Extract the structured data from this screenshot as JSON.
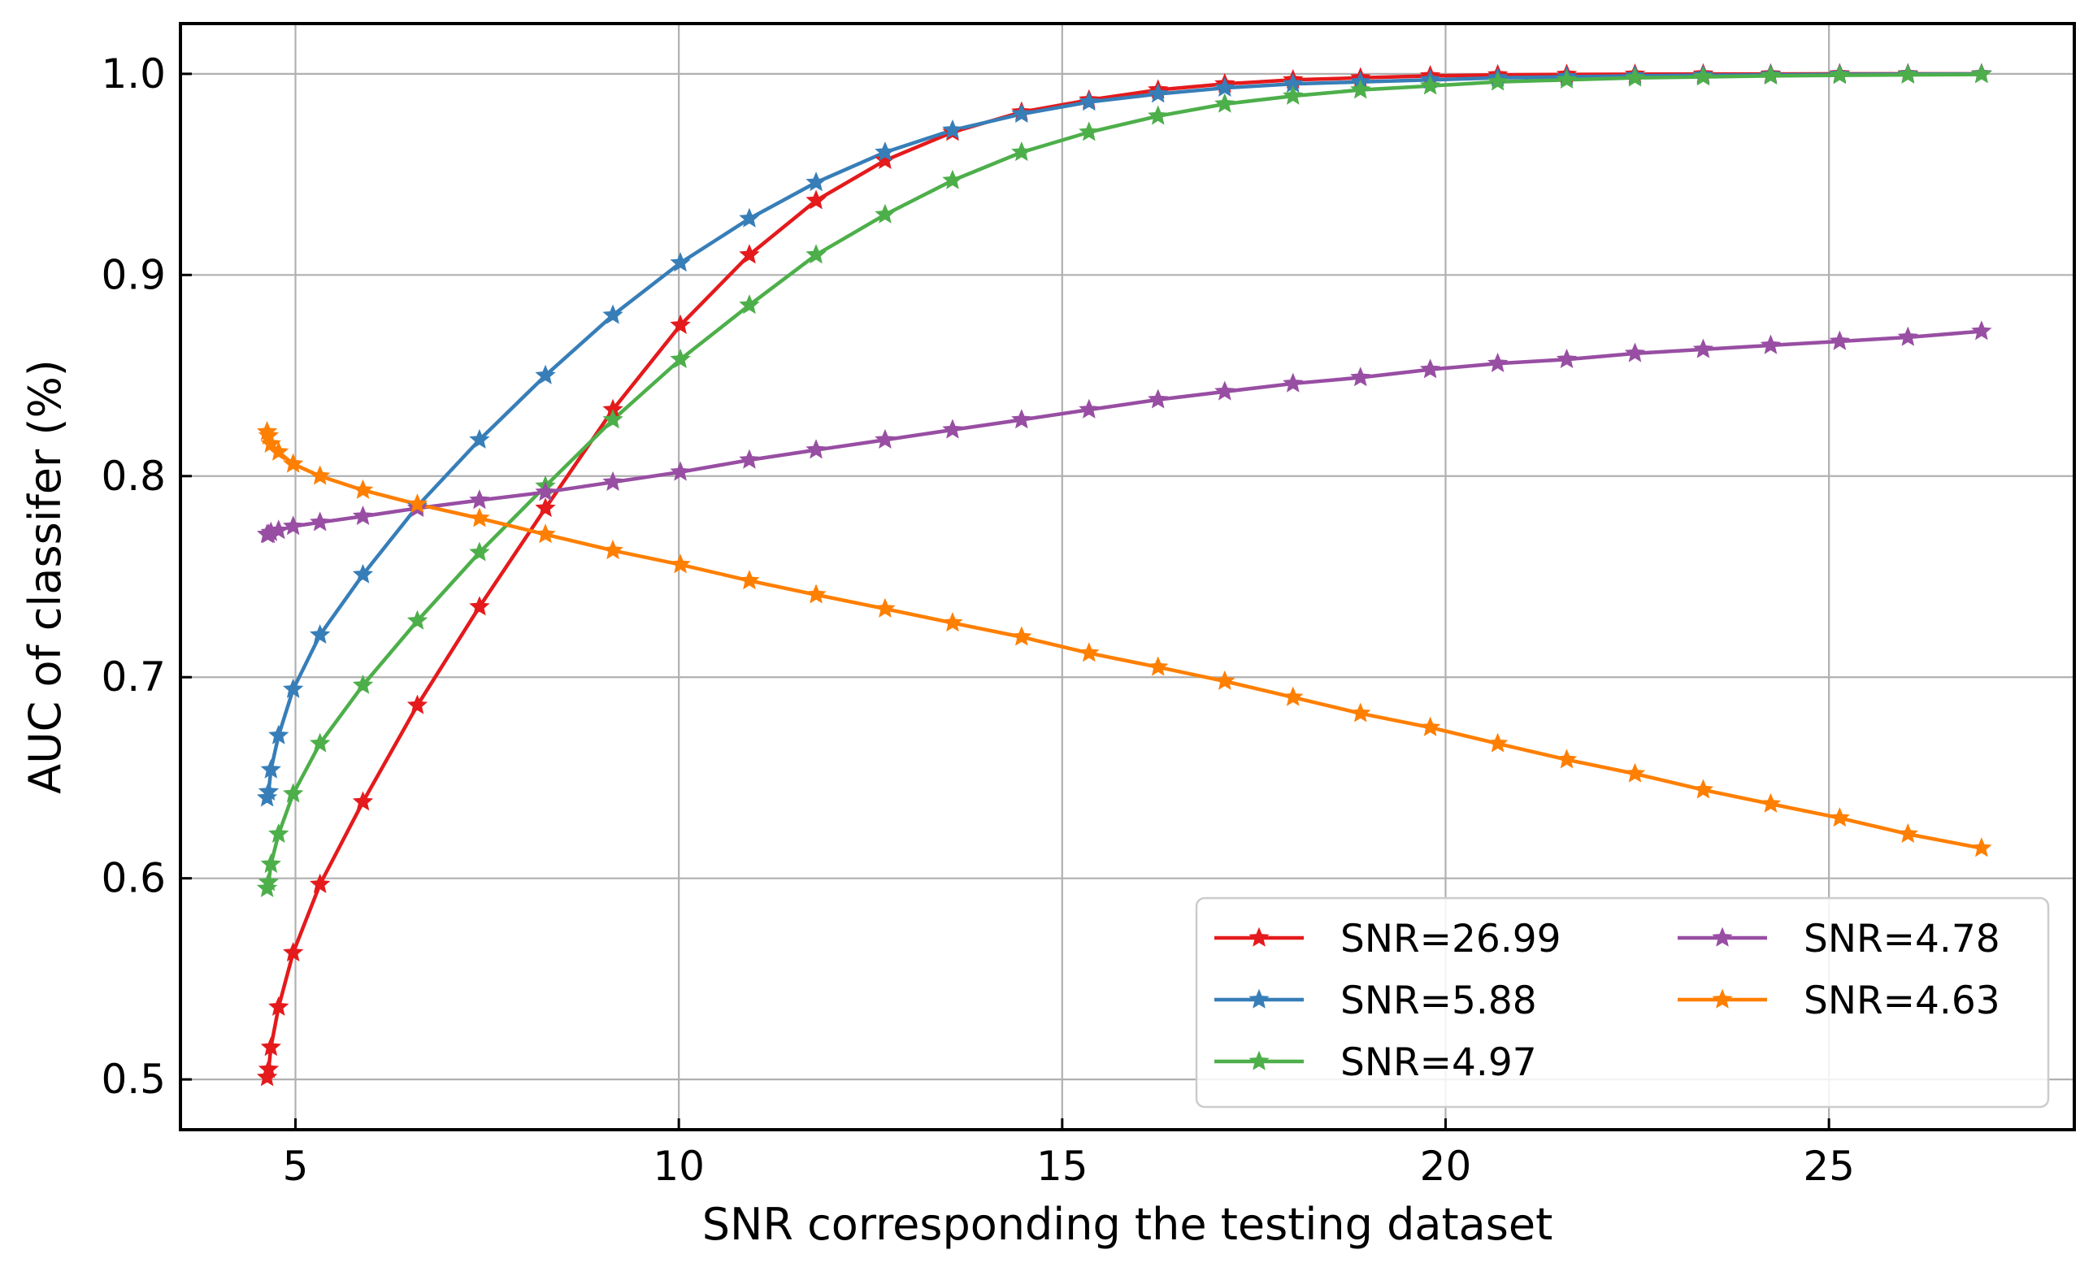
{
  "chart_data": {
    "type": "line",
    "title": "",
    "xlabel": "SNR corresponding the testing dataset",
    "ylabel": "AUC of classifer (%)",
    "xlim": [
      3.5,
      28.2
    ],
    "ylim": [
      0.475,
      1.025
    ],
    "xticks": [
      5,
      10,
      15,
      20,
      25
    ],
    "yticks": [
      0.5,
      0.6,
      0.7,
      0.8,
      0.9,
      1.0
    ],
    "grid": true,
    "legend_position": "lower-right",
    "legend_columns": 2,
    "marker": "star",
    "x": [
      4.63,
      4.65,
      4.68,
      4.78,
      4.97,
      5.32,
      5.88,
      6.59,
      7.4,
      8.26,
      9.14,
      10.02,
      10.92,
      11.79,
      12.69,
      13.57,
      14.47,
      15.35,
      16.25,
      17.12,
      18.01,
      18.89,
      19.8,
      20.68,
      21.58,
      22.47,
      23.36,
      24.24,
      25.14,
      26.03,
      26.99
    ],
    "series": [
      {
        "name": "SNR=26.99",
        "color": "#e41a1c",
        "values": [
          0.501,
          0.505,
          0.516,
          0.536,
          0.563,
          0.597,
          0.638,
          0.686,
          0.735,
          0.784,
          0.833,
          0.875,
          0.91,
          0.937,
          0.957,
          0.971,
          0.981,
          0.987,
          0.992,
          0.995,
          0.997,
          0.998,
          0.999,
          0.9995,
          0.9997,
          0.9998,
          0.9999,
          0.9999,
          1.0,
          1.0,
          1.0
        ]
      },
      {
        "name": "SNR=5.88",
        "color": "#377eb8",
        "values": [
          0.64,
          0.643,
          0.654,
          0.671,
          0.694,
          0.721,
          0.751,
          0.785,
          0.818,
          0.85,
          0.88,
          0.906,
          0.928,
          0.946,
          0.961,
          0.972,
          0.98,
          0.986,
          0.99,
          0.993,
          0.995,
          0.996,
          0.997,
          0.998,
          0.9985,
          0.999,
          0.9993,
          0.9995,
          0.9997,
          0.9998,
          0.9999
        ]
      },
      {
        "name": "SNR=4.97",
        "color": "#4daf4a",
        "values": [
          0.595,
          0.598,
          0.607,
          0.622,
          0.642,
          0.667,
          0.696,
          0.728,
          0.762,
          0.795,
          0.828,
          0.858,
          0.885,
          0.91,
          0.93,
          0.947,
          0.961,
          0.971,
          0.979,
          0.985,
          0.989,
          0.992,
          0.994,
          0.996,
          0.997,
          0.998,
          0.9985,
          0.999,
          0.9993,
          0.9995,
          0.9997
        ]
      },
      {
        "name": "SNR=4.78",
        "color": "#984ea3",
        "values": [
          0.771,
          0.771,
          0.772,
          0.773,
          0.775,
          0.777,
          0.78,
          0.784,
          0.788,
          0.792,
          0.797,
          0.802,
          0.808,
          0.813,
          0.818,
          0.823,
          0.828,
          0.833,
          0.838,
          0.842,
          0.846,
          0.849,
          0.853,
          0.856,
          0.858,
          0.861,
          0.863,
          0.865,
          0.867,
          0.869,
          0.872
        ]
      },
      {
        "name": "SNR=4.63",
        "color": "#ff7f00",
        "values": [
          0.822,
          0.82,
          0.816,
          0.812,
          0.806,
          0.8,
          0.793,
          0.786,
          0.779,
          0.771,
          0.763,
          0.756,
          0.748,
          0.741,
          0.734,
          0.727,
          0.72,
          0.712,
          0.705,
          0.698,
          0.69,
          0.682,
          0.675,
          0.667,
          0.659,
          0.652,
          0.644,
          0.637,
          0.63,
          0.622,
          0.615
        ]
      }
    ]
  }
}
